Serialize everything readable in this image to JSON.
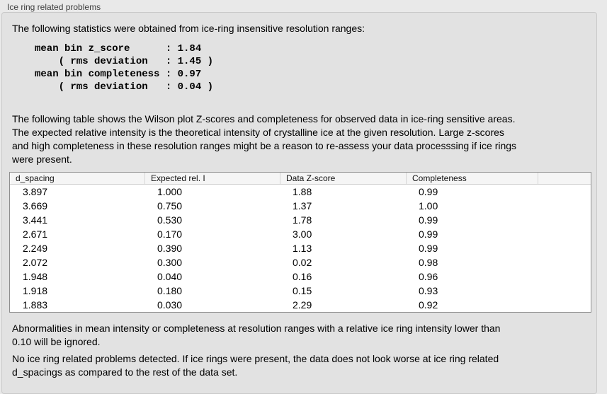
{
  "panel": {
    "title": "Ice ring related problems",
    "intro": "The following statistics were obtained from ice-ring insensitive resolution ranges:",
    "stats_text": "mean bin z_score      : 1.84\n    ( rms deviation   : 1.45 )\nmean bin completeness : 0.97\n    ( rms deviation   : 0.04 )",
    "stats": {
      "mean_bin_z_score": "1.84",
      "z_score_rms_deviation": "1.45",
      "mean_bin_completeness": "0.97",
      "completeness_rms_deviation": "0.04"
    },
    "table_description": "The following table shows the Wilson plot Z-scores and completeness for observed data in ice-ring sensitive areas.\nThe expected relative intensity is the theoretical intensity of crystalline ice at the given resolution. Large z-scores\nand high completeness in these resolution ranges might be a reason to re-assess your data processsing if ice rings\nwere present.",
    "ignore_note": "Abnormalities in mean intensity or completeness at resolution ranges with a relative ice ring intensity lower than\n0.10 will be ignored.",
    "conclusion": "No ice ring related problems detected. If ice rings were present, the data does not look worse at ice ring related\nd_spacings as compared to the rest of the data set."
  },
  "table": {
    "columns": [
      "d_spacing",
      "Expected rel. I",
      "Data Z-score",
      "Completeness",
      ""
    ],
    "rows": [
      [
        "3.897",
        "1.000",
        "1.88",
        "0.99"
      ],
      [
        "3.669",
        "0.750",
        "1.37",
        "1.00"
      ],
      [
        "3.441",
        "0.530",
        "1.78",
        "0.99"
      ],
      [
        "2.671",
        "0.170",
        "3.00",
        "0.99"
      ],
      [
        "2.249",
        "0.390",
        "1.13",
        "0.99"
      ],
      [
        "2.072",
        "0.300",
        "0.02",
        "0.98"
      ],
      [
        "1.948",
        "0.040",
        "0.16",
        "0.96"
      ],
      [
        "1.918",
        "0.180",
        "0.15",
        "0.93"
      ],
      [
        "1.883",
        "0.030",
        "2.29",
        "0.92"
      ]
    ]
  },
  "colors": {
    "page_bg": "#e9e9e9",
    "panel_bg": "#e2e2e2",
    "panel_border": "#c9c9c9",
    "table_bg": "#ffffff",
    "table_border": "#8f8f8f",
    "table_header_bg": "#f5f5f5"
  }
}
